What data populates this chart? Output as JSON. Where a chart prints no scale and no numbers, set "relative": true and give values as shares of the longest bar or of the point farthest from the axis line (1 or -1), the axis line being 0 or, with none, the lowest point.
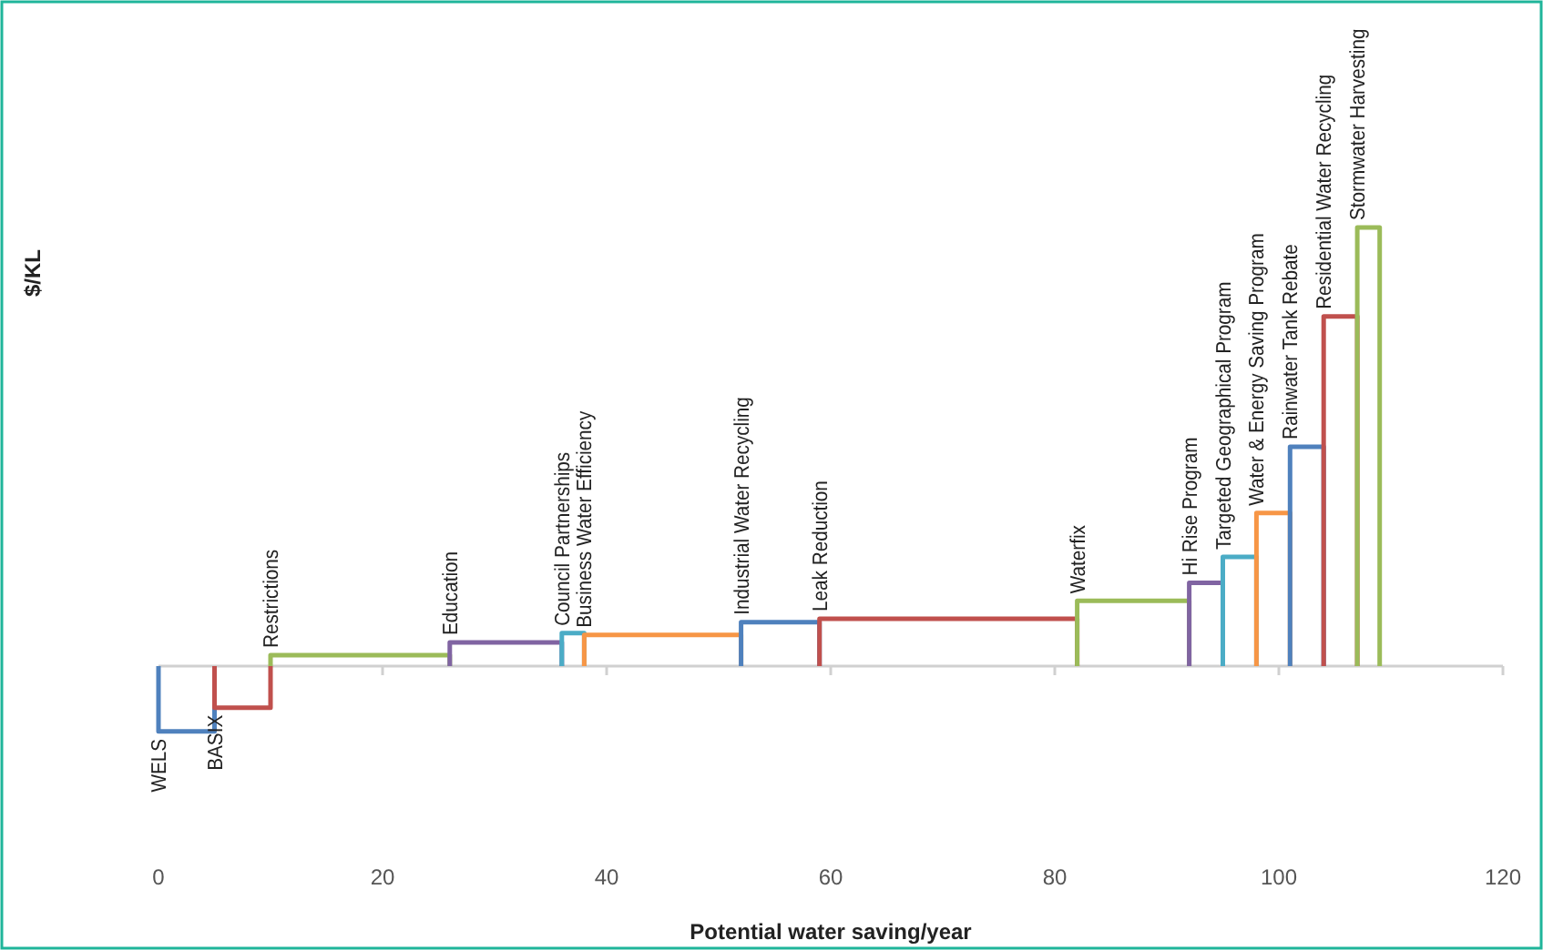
{
  "chart_data": {
    "type": "line",
    "xlabel": "Potential water saving/year",
    "ylabel": "$/KL",
    "relative": true,
    "series": [
      {
        "name": "WELS",
        "color": "#4f81bd",
        "x": [
          0,
          0,
          5,
          5
        ],
        "values": [
          0,
          -0.149,
          -0.149,
          0
        ]
      },
      {
        "name": "BASIX",
        "color": "#c0504d",
        "x": [
          5,
          5,
          10,
          10
        ],
        "values": [
          0,
          -0.095,
          -0.095,
          0
        ]
      },
      {
        "name": "Restrictions",
        "color": "#9bbb59",
        "x": [
          10,
          10,
          26,
          26
        ],
        "values": [
          0,
          0.025,
          0.025,
          0
        ]
      },
      {
        "name": "Education",
        "color": "#8064a2",
        "x": [
          26,
          26,
          36,
          36
        ],
        "values": [
          0,
          0.054,
          0.054,
          0
        ]
      },
      {
        "name": "Council Partnerships",
        "color": "#4bacc6",
        "x": [
          36,
          36,
          38,
          38
        ],
        "values": [
          0,
          0.075,
          0.075,
          0
        ]
      },
      {
        "name": "Business Water Efficiency",
        "color": "#f79646",
        "x": [
          38,
          38,
          52,
          52
        ],
        "values": [
          0,
          0.071,
          0.071,
          0
        ]
      },
      {
        "name": "Industrial Water Recycling",
        "color": "#4f81bd",
        "x": [
          52,
          52,
          59,
          59
        ],
        "values": [
          0,
          0.1,
          0.1,
          0
        ]
      },
      {
        "name": "Leak Reduction",
        "color": "#c0504d",
        "x": [
          59,
          59,
          82,
          82
        ],
        "values": [
          0,
          0.108,
          0.108,
          0
        ]
      },
      {
        "name": "Waterfix",
        "color": "#9bbb59",
        "x": [
          82,
          82,
          92,
          92
        ],
        "values": [
          0,
          0.149,
          0.149,
          0
        ]
      },
      {
        "name": "Hi Rise Program",
        "color": "#8064a2",
        "x": [
          92,
          92,
          95,
          95
        ],
        "values": [
          0,
          0.19,
          0.19,
          0
        ]
      },
      {
        "name": "Targeted Geographical Program",
        "color": "#4bacc6",
        "x": [
          95,
          95,
          98,
          98
        ],
        "values": [
          0,
          0.249,
          0.249,
          0
        ]
      },
      {
        "name": "Water & Energy Saving Program",
        "color": "#f79646",
        "x": [
          98,
          98,
          101,
          101
        ],
        "values": [
          0,
          0.349,
          0.349,
          0
        ]
      },
      {
        "name": "Rainwater Tank Rebate",
        "color": "#4f81bd",
        "x": [
          101,
          101,
          104,
          104
        ],
        "values": [
          0,
          0.5,
          0.5,
          0
        ]
      },
      {
        "name": "Residential Water Recycling",
        "color": "#c0504d",
        "x": [
          104,
          104,
          107,
          107
        ],
        "values": [
          0,
          0.797,
          0.797,
          0
        ]
      },
      {
        "name": "Stormwater Harvesting",
        "color": "#9bbb59",
        "x": [
          107,
          107,
          109,
          109
        ],
        "values": [
          0,
          1,
          1,
          0
        ]
      }
    ],
    "xlim": [
      0,
      120
    ],
    "xticks": [
      0,
      20,
      40,
      60,
      80,
      100,
      120
    ]
  }
}
